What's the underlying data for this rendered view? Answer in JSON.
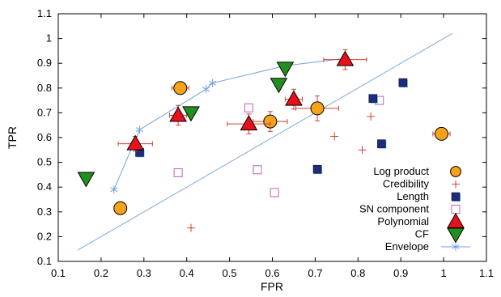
{
  "chart_data": {
    "type": "scatter",
    "title": "",
    "xlabel": "FPR",
    "ylabel": "TPR",
    "xlim": [
      0.1,
      1.1
    ],
    "ylim": [
      0.1,
      1.1
    ],
    "xticks": [
      "0.1",
      "0.2",
      "0.3",
      "0.4",
      "0.5",
      "0.6",
      "0.7",
      "0.8",
      "0.9",
      "1",
      "1.1"
    ],
    "yticks": [
      "0.1",
      "0.2",
      "0.3",
      "0.4",
      "0.5",
      "0.6",
      "0.7",
      "0.8",
      "0.9",
      "1",
      "1.1"
    ],
    "grid": false,
    "legend_position": "bottom-right",
    "reference_line": {
      "x": [
        0.145,
        1.02
      ],
      "y": [
        0.145,
        1.02
      ],
      "color": "#7fa8d8"
    },
    "series": [
      {
        "name": "Log product",
        "marker": "circle",
        "color": "#f7a21b",
        "points": [
          {
            "x": 0.245,
            "y": 0.315,
            "xerr": 0,
            "yerr": 0
          },
          {
            "x": 0.385,
            "y": 0.8,
            "xerr": 0.02,
            "yerr": 0
          },
          {
            "x": 0.595,
            "y": 0.665,
            "xerr": 0.04,
            "yerr": 0.04
          },
          {
            "x": 0.705,
            "y": 0.718,
            "xerr": 0.05,
            "yerr": 0.05
          },
          {
            "x": 0.995,
            "y": 0.615,
            "xerr": 0.02,
            "yerr": 0
          }
        ]
      },
      {
        "name": "Credibility",
        "marker": "plus",
        "color": "#d04030",
        "points": [
          {
            "x": 0.41,
            "y": 0.235
          },
          {
            "x": 0.545,
            "y": 0.72
          },
          {
            "x": 0.745,
            "y": 0.605
          },
          {
            "x": 0.81,
            "y": 0.55
          },
          {
            "x": 0.83,
            "y": 0.685
          }
        ]
      },
      {
        "name": "Length",
        "marker": "square-filled",
        "color": "#1f2a80",
        "points": [
          {
            "x": 0.29,
            "y": 0.54
          },
          {
            "x": 0.705,
            "y": 0.472
          },
          {
            "x": 0.835,
            "y": 0.758
          },
          {
            "x": 0.855,
            "y": 0.575
          },
          {
            "x": 0.905,
            "y": 0.822
          }
        ]
      },
      {
        "name": "SN component",
        "marker": "square-open",
        "color": "#c060c0",
        "points": [
          {
            "x": 0.38,
            "y": 0.458
          },
          {
            "x": 0.545,
            "y": 0.72
          },
          {
            "x": 0.565,
            "y": 0.47
          },
          {
            "x": 0.605,
            "y": 0.378
          },
          {
            "x": 0.85,
            "y": 0.75
          }
        ]
      },
      {
        "name": "Polynomial",
        "marker": "triangle-up",
        "color": "#e8101a",
        "points": [
          {
            "x": 0.28,
            "y": 0.575,
            "xerr": 0.04,
            "yerr": 0.03
          },
          {
            "x": 0.38,
            "y": 0.69,
            "xerr": 0.02,
            "yerr": 0.04
          },
          {
            "x": 0.545,
            "y": 0.655,
            "xerr": 0.05,
            "yerr": 0.04
          },
          {
            "x": 0.65,
            "y": 0.755,
            "xerr": 0.02,
            "yerr": 0.04
          },
          {
            "x": 0.77,
            "y": 0.915,
            "xerr": 0.05,
            "yerr": 0.04
          }
        ]
      },
      {
        "name": "CF",
        "marker": "triangle-down",
        "color": "#22901e",
        "points": [
          {
            "x": 0.165,
            "y": 0.435
          },
          {
            "x": 0.41,
            "y": 0.7
          },
          {
            "x": 0.615,
            "y": 0.815
          },
          {
            "x": 0.63,
            "y": 0.88
          }
        ]
      },
      {
        "name": "Envelope",
        "marker": "asterisk-line",
        "color": "#6fa0e0",
        "points": [
          {
            "x": 0.23,
            "y": 0.39
          },
          {
            "x": 0.29,
            "y": 0.632
          },
          {
            "x": 0.445,
            "y": 0.795
          },
          {
            "x": 0.46,
            "y": 0.82
          },
          {
            "x": 0.63,
            "y": 0.89
          },
          {
            "x": 0.77,
            "y": 0.92
          }
        ]
      }
    ]
  }
}
